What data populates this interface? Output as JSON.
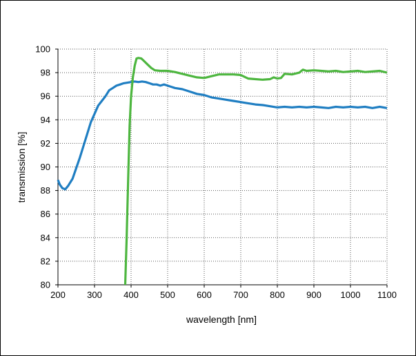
{
  "chart_data": {
    "type": "line",
    "title": "",
    "xlabel": "wavelength [nm]",
    "ylabel": "transmission [%]",
    "xlim": [
      200,
      1100
    ],
    "ylim": [
      80,
      100
    ],
    "x_ticks": [
      200,
      300,
      400,
      500,
      600,
      700,
      800,
      900,
      1000,
      1100
    ],
    "y_ticks": [
      80,
      82,
      84,
      86,
      88,
      90,
      92,
      94,
      96,
      98,
      100
    ],
    "grid": true,
    "legend": "none",
    "series": [
      {
        "color": "#1f7ec2",
        "points": [
          [
            200,
            88.9
          ],
          [
            205,
            88.5
          ],
          [
            212,
            88.2
          ],
          [
            220,
            88.1
          ],
          [
            228,
            88.4
          ],
          [
            240,
            89.0
          ],
          [
            250,
            89.9
          ],
          [
            260,
            90.8
          ],
          [
            270,
            91.8
          ],
          [
            280,
            92.8
          ],
          [
            290,
            93.8
          ],
          [
            300,
            94.5
          ],
          [
            310,
            95.2
          ],
          [
            320,
            95.6
          ],
          [
            330,
            96.0
          ],
          [
            340,
            96.5
          ],
          [
            350,
            96.7
          ],
          [
            360,
            96.9
          ],
          [
            370,
            97.0
          ],
          [
            380,
            97.1
          ],
          [
            390,
            97.15
          ],
          [
            400,
            97.2
          ],
          [
            410,
            97.25
          ],
          [
            420,
            97.2
          ],
          [
            430,
            97.25
          ],
          [
            440,
            97.2
          ],
          [
            450,
            97.1
          ],
          [
            460,
            97.0
          ],
          [
            470,
            97.0
          ],
          [
            480,
            96.9
          ],
          [
            490,
            97.0
          ],
          [
            500,
            96.9
          ],
          [
            510,
            96.8
          ],
          [
            520,
            96.7
          ],
          [
            540,
            96.6
          ],
          [
            560,
            96.4
          ],
          [
            580,
            96.2
          ],
          [
            600,
            96.1
          ],
          [
            620,
            95.9
          ],
          [
            640,
            95.8
          ],
          [
            660,
            95.7
          ],
          [
            680,
            95.6
          ],
          [
            700,
            95.5
          ],
          [
            720,
            95.4
          ],
          [
            740,
            95.3
          ],
          [
            760,
            95.25
          ],
          [
            780,
            95.15
          ],
          [
            800,
            95.05
          ],
          [
            820,
            95.1
          ],
          [
            840,
            95.05
          ],
          [
            860,
            95.1
          ],
          [
            880,
            95.05
          ],
          [
            900,
            95.1
          ],
          [
            920,
            95.05
          ],
          [
            940,
            95.0
          ],
          [
            960,
            95.1
          ],
          [
            980,
            95.05
          ],
          [
            1000,
            95.1
          ],
          [
            1020,
            95.05
          ],
          [
            1040,
            95.1
          ],
          [
            1060,
            95.0
          ],
          [
            1080,
            95.1
          ],
          [
            1100,
            95.0
          ]
        ]
      },
      {
        "color": "#4db63f",
        "points": [
          [
            384,
            80.0
          ],
          [
            388,
            84.0
          ],
          [
            392,
            89.0
          ],
          [
            396,
            93.5
          ],
          [
            400,
            96.0
          ],
          [
            405,
            97.6
          ],
          [
            410,
            98.6
          ],
          [
            415,
            99.2
          ],
          [
            420,
            99.25
          ],
          [
            428,
            99.2
          ],
          [
            435,
            99.0
          ],
          [
            445,
            98.7
          ],
          [
            455,
            98.4
          ],
          [
            465,
            98.2
          ],
          [
            480,
            98.15
          ],
          [
            500,
            98.15
          ],
          [
            520,
            98.05
          ],
          [
            540,
            97.9
          ],
          [
            560,
            97.75
          ],
          [
            580,
            97.6
          ],
          [
            600,
            97.55
          ],
          [
            620,
            97.7
          ],
          [
            640,
            97.85
          ],
          [
            660,
            97.85
          ],
          [
            680,
            97.85
          ],
          [
            700,
            97.8
          ],
          [
            710,
            97.65
          ],
          [
            720,
            97.5
          ],
          [
            740,
            97.45
          ],
          [
            760,
            97.4
          ],
          [
            780,
            97.45
          ],
          [
            790,
            97.6
          ],
          [
            800,
            97.5
          ],
          [
            810,
            97.55
          ],
          [
            820,
            97.9
          ],
          [
            840,
            97.85
          ],
          [
            860,
            98.0
          ],
          [
            870,
            98.25
          ],
          [
            880,
            98.15
          ],
          [
            900,
            98.2
          ],
          [
            920,
            98.15
          ],
          [
            940,
            98.1
          ],
          [
            960,
            98.15
          ],
          [
            980,
            98.05
          ],
          [
            1000,
            98.1
          ],
          [
            1020,
            98.15
          ],
          [
            1040,
            98.05
          ],
          [
            1060,
            98.1
          ],
          [
            1080,
            98.15
          ],
          [
            1100,
            98.0
          ]
        ]
      }
    ]
  }
}
